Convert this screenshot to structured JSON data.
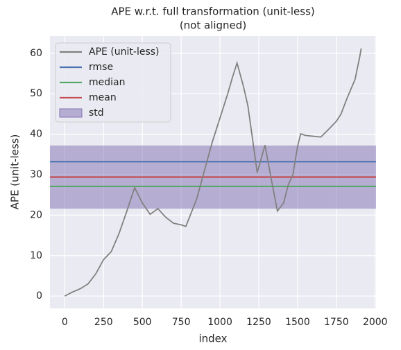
{
  "chart_data": {
    "type": "line",
    "title": "APE w.r.t. full transformation (unit-less)",
    "subtitle": "(not aligned)",
    "xlabel": "index",
    "ylabel": "APE (unit-less)",
    "x": [
      0,
      50,
      100,
      150,
      200,
      250,
      300,
      350,
      400,
      450,
      500,
      550,
      600,
      650,
      700,
      750,
      780,
      850,
      900,
      950,
      1000,
      1050,
      1080,
      1110,
      1150,
      1180,
      1240,
      1290,
      1330,
      1370,
      1410,
      1440,
      1470,
      1500,
      1520,
      1550,
      1600,
      1650,
      1700,
      1750,
      1780,
      1820,
      1870,
      1900,
      1910
    ],
    "series": [
      {
        "name": "APE (unit-less)",
        "color": "#808080",
        "values": [
          0,
          1,
          1.8,
          3,
          5.5,
          9,
          11,
          15.5,
          21,
          26.8,
          23,
          20.2,
          21.6,
          19.5,
          18,
          17.6,
          17.2,
          24,
          31,
          38,
          44,
          50,
          54,
          57.6,
          52,
          47,
          30.5,
          37.3,
          29,
          21,
          23,
          27.5,
          30,
          37,
          40.1,
          39.7,
          39.5,
          39.3,
          41.2,
          43.2,
          45,
          49,
          53.5,
          59,
          61.2
        ]
      }
    ],
    "hlines": [
      {
        "name": "rmse",
        "color": "#4c72b0",
        "value": 33.2
      },
      {
        "name": "median",
        "color": "#55a868",
        "value": 27.1
      },
      {
        "name": "mean",
        "color": "#c44e52",
        "value": 29.4
      }
    ],
    "band": {
      "name": "std",
      "color": "#8172b2",
      "value": 7.8
    },
    "xlim": [
      -95.5,
      2005.5
    ],
    "ylim": [
      -3.06,
      64.26
    ],
    "xticks": [
      0,
      250,
      500,
      750,
      1000,
      1250,
      1500,
      1750,
      2000
    ],
    "yticks": [
      0,
      10,
      20,
      30,
      40,
      50,
      60
    ],
    "grid": true,
    "legend": "upper left"
  }
}
